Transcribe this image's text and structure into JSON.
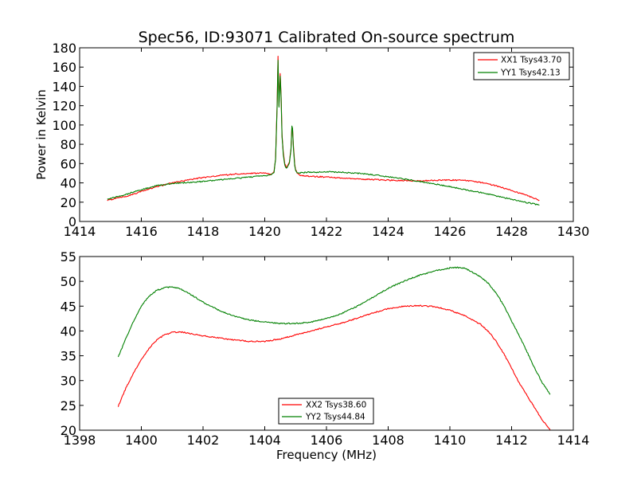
{
  "title": "Spec56, ID:93071 Calibrated On-source spectrum",
  "colors": {
    "red": "#ff0000",
    "green": "#008000"
  },
  "chart_data": [
    {
      "type": "line",
      "title": "Spec56, ID:93071 Calibrated On-source spectrum",
      "xlabel": "",
      "ylabel": "Power in Kelvin",
      "xlim": [
        1414,
        1430
      ],
      "ylim": [
        0,
        180
      ],
      "xticks": [
        1414,
        1416,
        1418,
        1420,
        1422,
        1424,
        1426,
        1428,
        1430
      ],
      "yticks": [
        0,
        20,
        40,
        60,
        80,
        100,
        120,
        140,
        160,
        180
      ],
      "legend_position": "top-right",
      "grid": false,
      "series": [
        {
          "name": "XX1 Tsys43.70",
          "color": "#ff0000",
          "x": [
            1414.9,
            1415.5,
            1416.0,
            1416.5,
            1417.0,
            1417.5,
            1418.0,
            1418.5,
            1419.0,
            1419.5,
            1420.0,
            1420.2,
            1420.3,
            1420.35,
            1420.4,
            1420.43,
            1420.46,
            1420.5,
            1420.53,
            1420.56,
            1420.6,
            1420.65,
            1420.7,
            1420.75,
            1420.8,
            1420.85,
            1420.88,
            1420.9,
            1420.93,
            1420.97,
            1421.0,
            1421.05,
            1421.1,
            1421.2,
            1421.4,
            1421.7,
            1422.0,
            1422.5,
            1423.0,
            1423.5,
            1424.0,
            1424.5,
            1425.0,
            1425.5,
            1426.0,
            1426.5,
            1427.0,
            1427.5,
            1428.0,
            1428.5,
            1428.9
          ],
          "y": [
            22,
            26,
            31,
            36,
            40,
            43,
            45.5,
            47.5,
            49,
            50,
            50,
            49,
            51,
            65,
            120,
            171,
            120,
            153,
            130,
            90,
            72,
            60,
            56,
            58,
            62,
            75,
            98,
            97,
            78,
            60,
            54,
            50,
            48.5,
            47.5,
            47,
            46.5,
            46,
            45,
            44,
            43.5,
            42.8,
            42.3,
            42,
            42.5,
            43,
            42.5,
            40.5,
            37,
            32,
            27,
            22
          ]
        },
        {
          "name": "YY1 Tsys42.13",
          "color": "#008000",
          "x": [
            1414.9,
            1415.5,
            1416.0,
            1416.5,
            1417.0,
            1417.5,
            1418.0,
            1418.5,
            1419.0,
            1419.5,
            1420.0,
            1420.2,
            1420.3,
            1420.35,
            1420.4,
            1420.43,
            1420.46,
            1420.5,
            1420.53,
            1420.56,
            1420.6,
            1420.65,
            1420.7,
            1420.75,
            1420.8,
            1420.85,
            1420.88,
            1420.9,
            1420.93,
            1420.97,
            1421.0,
            1421.05,
            1421.1,
            1421.2,
            1421.4,
            1421.7,
            1422.0,
            1422.5,
            1423.0,
            1423.5,
            1424.0,
            1424.5,
            1425.0,
            1425.5,
            1426.0,
            1426.5,
            1427.0,
            1427.5,
            1428.0,
            1428.5,
            1428.9
          ],
          "y": [
            23,
            28,
            33,
            37,
            39.5,
            40.5,
            41.5,
            43,
            44.5,
            46,
            47.5,
            48.5,
            51,
            64,
            118,
            167,
            118,
            151,
            128,
            88,
            70,
            58,
            55,
            57,
            61,
            74,
            99,
            96,
            76,
            58,
            53,
            51,
            50.5,
            50.5,
            51,
            51,
            51.5,
            51,
            50,
            48.5,
            46.5,
            44,
            41.5,
            39,
            36,
            33,
            30,
            26.5,
            23,
            19.5,
            17
          ]
        }
      ]
    },
    {
      "type": "line",
      "title": "",
      "xlabel": "Frequency (MHz)",
      "ylabel": "",
      "xlim": [
        1398,
        1414
      ],
      "ylim": [
        20,
        55
      ],
      "xticks": [
        1398,
        1400,
        1402,
        1404,
        1406,
        1408,
        1410,
        1412,
        1414
      ],
      "yticks": [
        20,
        25,
        30,
        35,
        40,
        45,
        50,
        55
      ],
      "legend_position": "lower-center",
      "grid": false,
      "series": [
        {
          "name": "XX2 Tsys38.60",
          "color": "#ff0000",
          "x": [
            1399.25,
            1399.5,
            1399.75,
            1400.0,
            1400.25,
            1400.5,
            1400.75,
            1401.0,
            1401.25,
            1401.5,
            1401.75,
            1402.0,
            1402.5,
            1403.0,
            1403.5,
            1404.0,
            1404.5,
            1405.0,
            1405.5,
            1406.0,
            1406.5,
            1407.0,
            1407.5,
            1408.0,
            1408.5,
            1409.0,
            1409.5,
            1410.0,
            1410.5,
            1411.0,
            1411.25,
            1411.5,
            1411.75,
            1412.0,
            1412.25,
            1412.5,
            1412.75,
            1413.0,
            1413.25
          ],
          "y": [
            24.8,
            28.5,
            31.5,
            34.2,
            36.5,
            38.2,
            39.2,
            39.7,
            39.8,
            39.6,
            39.3,
            39.0,
            38.6,
            38.2,
            37.9,
            37.9,
            38.4,
            39.2,
            40.0,
            40.8,
            41.6,
            42.6,
            43.6,
            44.5,
            45.0,
            45.1,
            44.9,
            44.2,
            43.0,
            41.3,
            39.9,
            37.9,
            35.4,
            32.5,
            29.5,
            27.0,
            24.5,
            22.0,
            20.0
          ]
        },
        {
          "name": "YY2 Tsys44.84",
          "color": "#008000",
          "x": [
            1399.25,
            1399.5,
            1399.75,
            1400.0,
            1400.25,
            1400.5,
            1400.75,
            1401.0,
            1401.25,
            1401.5,
            1401.75,
            1402.0,
            1402.5,
            1403.0,
            1403.5,
            1404.0,
            1404.5,
            1405.0,
            1405.5,
            1406.0,
            1406.5,
            1407.0,
            1407.5,
            1408.0,
            1408.5,
            1409.0,
            1409.5,
            1410.0,
            1410.25,
            1410.5,
            1410.75,
            1411.0,
            1411.25,
            1411.5,
            1411.75,
            1412.0,
            1412.25,
            1412.5,
            1412.75,
            1413.0,
            1413.25
          ],
          "y": [
            34.7,
            38.5,
            42.0,
            45.0,
            47.0,
            48.2,
            48.7,
            48.9,
            48.5,
            47.7,
            46.8,
            45.8,
            44.2,
            43.0,
            42.2,
            41.8,
            41.5,
            41.5,
            41.8,
            42.5,
            43.5,
            45.0,
            46.8,
            48.6,
            50.0,
            51.2,
            52.1,
            52.7,
            52.8,
            52.6,
            51.8,
            50.9,
            49.6,
            47.6,
            45.1,
            42.0,
            39.0,
            35.8,
            32.5,
            29.5,
            27.2
          ]
        }
      ]
    }
  ]
}
